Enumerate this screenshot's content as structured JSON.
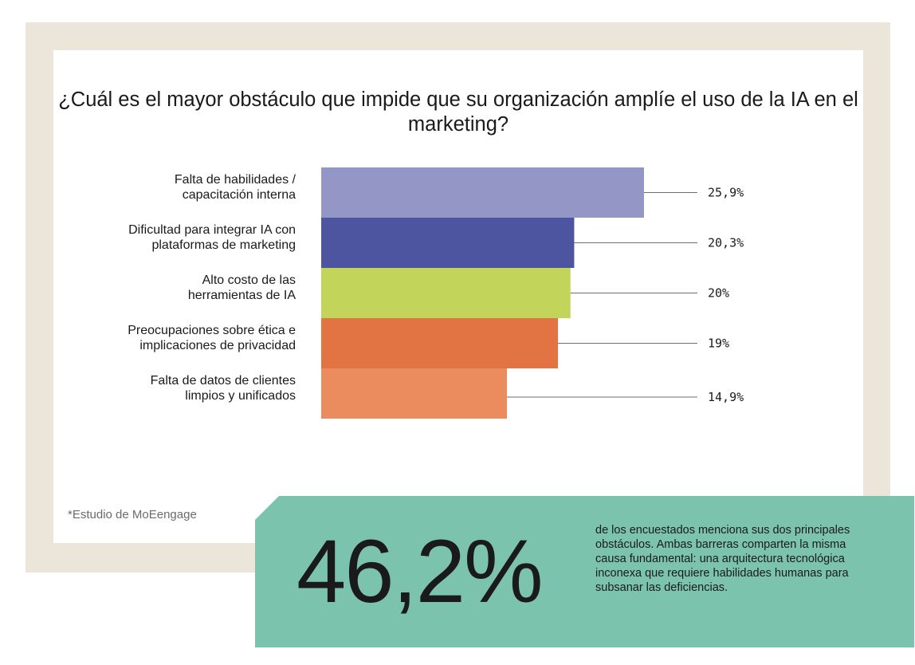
{
  "chart_data": {
    "type": "bar",
    "orientation": "horizontal",
    "title": "¿Cuál es el mayor obstáculo que impide que su organización amplíe el uso de la IA en el marketing?",
    "categories": [
      [
        "Falta de habilidades /",
        "capacitación interna"
      ],
      [
        "Dificultad para integrar IA con",
        "plataformas de marketing"
      ],
      [
        "Alto costo de las",
        "herramientas de IA"
      ],
      [
        "Preocupaciones sobre ética e",
        "implicaciones de privacidad"
      ],
      [
        "Falta de datos de clientes",
        "limpios y unificados"
      ]
    ],
    "values": [
      25.9,
      20.3,
      20,
      19,
      14.9
    ],
    "value_labels": [
      "25,9%",
      "20,3%",
      "20%",
      "19%",
      "14,9%"
    ],
    "colors": [
      "#9497c6",
      "#4e55a0",
      "#c2d459",
      "#e27443",
      "#ea8c5e"
    ],
    "xlim": [
      0,
      25.9
    ],
    "grid": false,
    "legend": "none"
  },
  "source_note": "*Estudio de MoEengage",
  "callout": {
    "big_value": "46,2%",
    "text": "de los encuestados menciona sus dos principales obstáculos. Ambas barreras comparten la misma causa fundamental: una arquitectura tecnológica inconexa que requiere habilidades humanas para subsanar las deficiencias."
  }
}
